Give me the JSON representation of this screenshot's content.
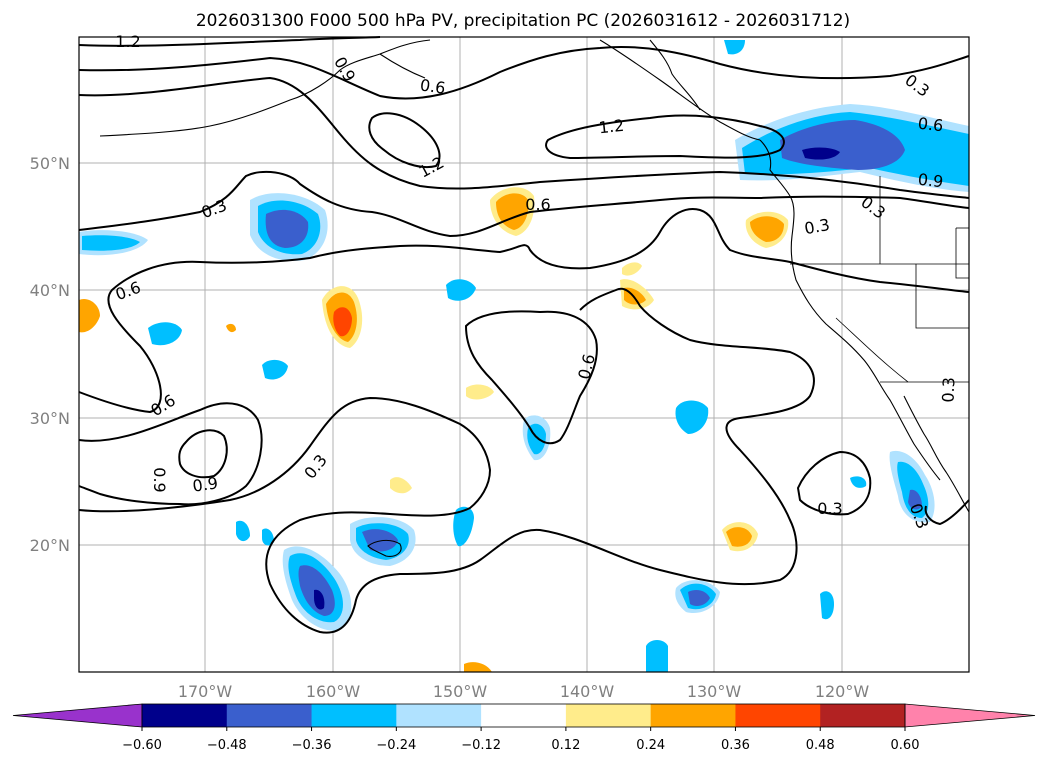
{
  "title": "2026031300 F000 500 hPa PV, precipitation PC (2026031612 - 2026031712)",
  "lat_labels": [
    "20°N",
    "30°N",
    "40°N",
    "50°N"
  ],
  "lon_labels": [
    "170°W",
    "160°W",
    "150°W",
    "140°W",
    "130°W",
    "120°W"
  ],
  "contour_labels": [
    "1.2",
    "0.6",
    "0.9",
    "1.2",
    "1.2",
    "0.6",
    "0.3",
    "0.6",
    "0.3",
    "0.6",
    "0.9",
    "0.3",
    "0.3",
    "0.6",
    "0.6",
    "0.9",
    "0.9",
    "0.3",
    "0.3",
    "0.3",
    "0.3",
    "0.6",
    "0.6"
  ],
  "colorbar": {
    "ticks": [
      "−0.60",
      "−0.48",
      "−0.36",
      "−0.24",
      "−0.12",
      "0.12",
      "0.24",
      "0.36",
      "0.48",
      "0.60"
    ],
    "colors": [
      "#9932cc",
      "#00008b",
      "#3a5fcd",
      "#00bfff",
      "#b0e2ff",
      "#ffffff",
      "#ffec8b",
      "#ffa500",
      "#ff4500",
      "#b22222",
      "#ff82ab"
    ]
  },
  "colors": {
    "neg_strong": "#00008b",
    "neg_mid": "#3a5fcd",
    "neg_light": "#00bfff",
    "neg_pale": "#b0e2ff",
    "pos_pale": "#ffec8b",
    "pos_mid": "#ffa500",
    "pos_strong": "#ff4500"
  }
}
